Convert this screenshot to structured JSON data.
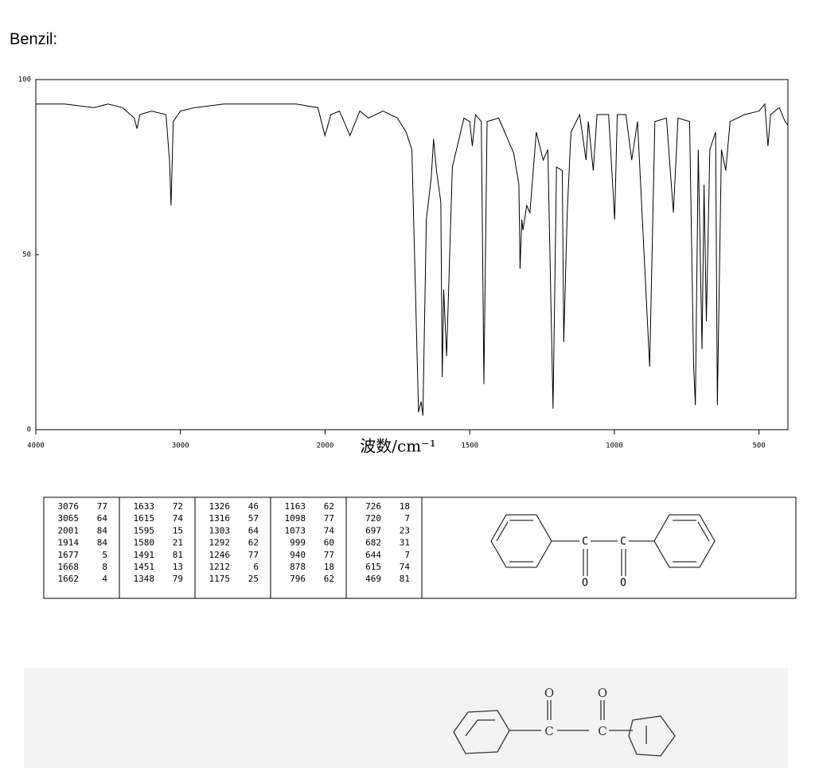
{
  "title": "Benzil:",
  "chart_data": {
    "type": "line",
    "x_label": "波数/cm⁻¹",
    "x": [
      4000,
      3800,
      3600,
      3500,
      3400,
      3320,
      3300,
      3280,
      3200,
      3100,
      3076,
      3065,
      3050,
      3000,
      2900,
      2700,
      2500,
      2200,
      2050,
      2001,
      1980,
      1950,
      1914,
      1880,
      1850,
      1800,
      1750,
      1720,
      1700,
      1677,
      1668,
      1662,
      1650,
      1633,
      1625,
      1615,
      1600,
      1595,
      1590,
      1580,
      1560,
      1520,
      1500,
      1491,
      1480,
      1460,
      1451,
      1440,
      1400,
      1348,
      1330,
      1326,
      1320,
      1316,
      1303,
      1292,
      1270,
      1246,
      1230,
      1212,
      1200,
      1180,
      1175,
      1163,
      1150,
      1120,
      1098,
      1090,
      1073,
      1060,
      1020,
      999,
      990,
      960,
      940,
      920,
      878,
      860,
      820,
      796,
      780,
      740,
      726,
      720,
      710,
      697,
      690,
      682,
      670,
      650,
      644,
      630,
      615,
      600,
      550,
      500,
      480,
      469,
      460,
      430,
      410,
      400
    ],
    "values": [
      93,
      93,
      92,
      93,
      92,
      89,
      86,
      90,
      91,
      90,
      77,
      64,
      88,
      91,
      92,
      93,
      93,
      93,
      92,
      84,
      90,
      91,
      84,
      91,
      89,
      91,
      89,
      85,
      80,
      5,
      8,
      4,
      60,
      72,
      83,
      74,
      65,
      15,
      40,
      21,
      75,
      89,
      88,
      81,
      90,
      88,
      13,
      88,
      89,
      79,
      70,
      46,
      60,
      57,
      64,
      62,
      85,
      77,
      80,
      6,
      75,
      74,
      25,
      62,
      85,
      90,
      77,
      88,
      74,
      90,
      90,
      60,
      90,
      90,
      77,
      88,
      18,
      88,
      89,
      62,
      89,
      88,
      18,
      7,
      80,
      23,
      70,
      31,
      80,
      85,
      7,
      80,
      74,
      88,
      90,
      91,
      93,
      81,
      90,
      92,
      88,
      87
    ],
    "color": "#000000",
    "xlim": [
      4000,
      400
    ],
    "x_scale_change": {
      "at": 2000,
      "factor": 2
    },
    "xticks": [
      4000,
      3000,
      2000,
      1500,
      1000,
      500
    ],
    "ylim": [
      0,
      100
    ],
    "yticks": [
      0,
      50,
      100
    ]
  },
  "table": {
    "rows": [
      [
        "3076",
        "77",
        "1633",
        "72",
        "1326",
        "46",
        "1163",
        "62",
        "726",
        "18"
      ],
      [
        "3065",
        "64",
        "1615",
        "74",
        "1316",
        "57",
        "1098",
        "77",
        "720",
        "7"
      ],
      [
        "2001",
        "84",
        "1595",
        "15",
        "1303",
        "64",
        "1073",
        "74",
        "697",
        "23"
      ],
      [
        "1914",
        "84",
        "1580",
        "21",
        "1292",
        "62",
        "999",
        "60",
        "682",
        "31"
      ],
      [
        "1677",
        "5",
        "1491",
        "81",
        "1246",
        "77",
        "940",
        "77",
        "644",
        "7"
      ],
      [
        "1668",
        "8",
        "1451",
        "13",
        "1212",
        "6",
        "878",
        "18",
        "615",
        "74"
      ],
      [
        "1662",
        "4",
        "1348",
        "79",
        "1175",
        "25",
        "796",
        "62",
        "469",
        "81"
      ]
    ]
  },
  "structure": {
    "atoms": [
      "C",
      "C",
      "O",
      "O"
    ]
  },
  "sketch": {
    "labels": [
      "O",
      "O",
      "C",
      "C"
    ]
  }
}
